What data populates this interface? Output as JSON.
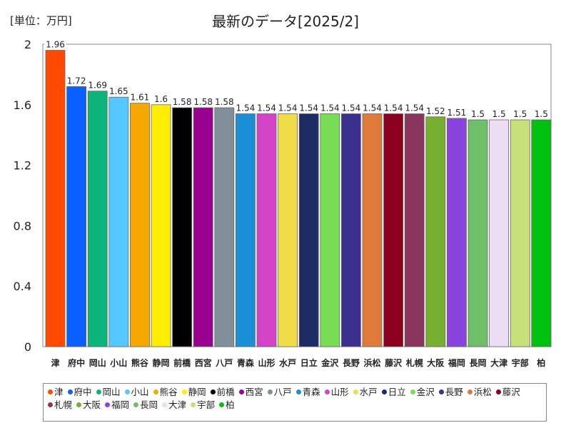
{
  "chart_data": {
    "type": "bar",
    "title": "最新のデータ[2025/2]",
    "unit_label": "[単位：万円]",
    "categories": [
      "津",
      "府中",
      "岡山",
      "小山",
      "熊谷",
      "静岡",
      "前橋",
      "西宮",
      "八戸",
      "青森",
      "山形",
      "水戸",
      "日立",
      "金沢",
      "長野",
      "浜松",
      "藤沢",
      "札幌",
      "大阪",
      "福岡",
      "長岡",
      "大津",
      "宇部",
      "柏"
    ],
    "values": [
      1.96,
      1.72,
      1.69,
      1.65,
      1.61,
      1.6,
      1.58,
      1.58,
      1.58,
      1.54,
      1.54,
      1.54,
      1.54,
      1.54,
      1.54,
      1.54,
      1.54,
      1.54,
      1.52,
      1.51,
      1.5,
      1.5,
      1.5,
      1.5
    ],
    "value_labels": [
      "1.96",
      "1.72",
      "1.69",
      "1.65",
      "1.61",
      "1.6",
      "1.58",
      "1.58",
      "1.58",
      "1.54",
      "1.54",
      "1.54",
      "1.54",
      "1.54",
      "1.54",
      "1.54",
      "1.54",
      "1.54",
      "1.52",
      "1.51",
      "1.5",
      "1.5",
      "1.5",
      "1.5"
    ],
    "colors": [
      "#ff4a00",
      "#0a5fff",
      "#0db37a",
      "#55c8ff",
      "#f7a800",
      "#ffee00",
      "#000000",
      "#99008f",
      "#818f9b",
      "#1a8ed6",
      "#d444c8",
      "#f0dc48",
      "#1e2c66",
      "#77dd55",
      "#3d2f8f",
      "#e07a3a",
      "#8c0020",
      "#8b355c",
      "#77b030",
      "#8844dd",
      "#6fbe6a",
      "#ecdcf4",
      "#c8e07a",
      "#00c010"
    ],
    "yticks": [
      "0",
      "0.4",
      "0.8",
      "1.2",
      "1.6",
      "2"
    ],
    "ylim": [
      0,
      2
    ],
    "grid": false,
    "legend_position": "bottom"
  }
}
